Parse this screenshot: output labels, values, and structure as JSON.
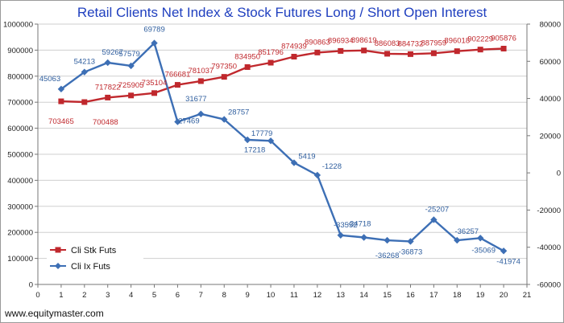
{
  "footer_text": "www.equitymaster.com",
  "chart_data": {
    "type": "line",
    "title": "Retail Clients Net Index & Stock Futures Long / Short Open Interest",
    "x": [
      1,
      2,
      3,
      4,
      5,
      6,
      7,
      8,
      9,
      10,
      11,
      12,
      13,
      14,
      15,
      16,
      17,
      18,
      19,
      20
    ],
    "xlim": [
      0,
      21
    ],
    "xticks": [
      0,
      1,
      2,
      3,
      4,
      5,
      6,
      7,
      8,
      9,
      10,
      11,
      12,
      13,
      14,
      15,
      16,
      17,
      18,
      19,
      20,
      21
    ],
    "y_left": {
      "ylim": [
        0,
        1000000
      ],
      "ticks": [
        0,
        100000,
        200000,
        300000,
        400000,
        500000,
        600000,
        700000,
        800000,
        900000,
        1000000
      ]
    },
    "y_right": {
      "ylim": [
        -60000,
        80000
      ],
      "ticks": [
        -60000,
        -40000,
        -20000,
        0,
        20000,
        40000,
        60000,
        80000
      ]
    },
    "legend_position": "left",
    "grid": true,
    "series": [
      {
        "name": "Cli Stk Futs",
        "axis": "left",
        "color": "#c0282d",
        "marker": "square",
        "values": [
          703465,
          700488,
          717822,
          725905,
          735104,
          766681,
          781037,
          797350,
          834950,
          851796,
          874939,
          890863,
          896934,
          898619,
          886083,
          884732,
          887959,
          896018,
          902229,
          905876
        ],
        "labels": [
          "703465",
          "700488",
          "717822",
          "725905",
          "735104",
          "766681",
          "781037",
          "797350",
          "834950",
          "851796",
          "874939",
          "890863",
          "896934",
          "898619",
          "886083",
          "884732",
          "887959",
          "896018",
          "902229",
          "905876"
        ]
      },
      {
        "name": "Cli Ix Futs",
        "axis": "right",
        "color": "#3d6fb5",
        "marker": "diamond",
        "values": [
          45063,
          54213,
          59267,
          57579,
          69789,
          27469,
          31677,
          28757,
          17779,
          17218,
          5419,
          -1228,
          -33552,
          -34718,
          -36268,
          -36873,
          -25207,
          -36257,
          -35069,
          -41974
        ],
        "labels": [
          "45063",
          "54213",
          "59267",
          "57579",
          "69789",
          "27469",
          "31677",
          "28757",
          "17779",
          "17218",
          "5419",
          "-1228",
          "-33552",
          "-34718",
          "-36268",
          "-36873",
          "-25207",
          "-36257",
          "-35069",
          "-41974"
        ]
      }
    ]
  }
}
